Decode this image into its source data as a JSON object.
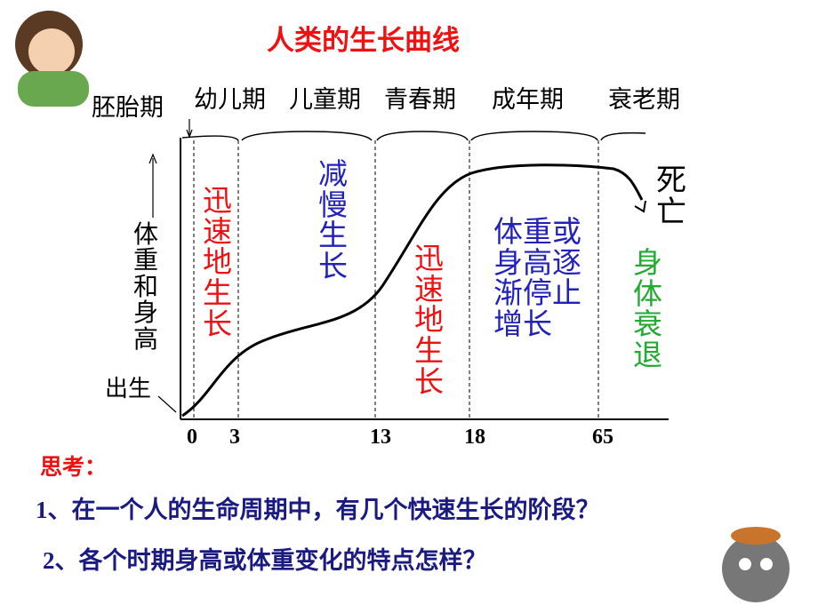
{
  "title": "人类的生长曲线",
  "stages": [
    "胚胎期",
    "幼儿期",
    "儿童期",
    "青春期",
    "成年期",
    "衰老期"
  ],
  "y_label": "体重和身高",
  "birth_label": "出生",
  "end_label": "死亡",
  "x_labels": [
    "0",
    "3",
    "13",
    "18",
    "65"
  ],
  "phase_notes": [
    {
      "text": "迅速地生长",
      "color": "#ee1111"
    },
    {
      "text": "减慢生长",
      "color": "#2222bb"
    },
    {
      "text": "迅速地生长",
      "color": "#ee1111"
    },
    {
      "text": "体重或身高逐渐停止增长",
      "color": "#2222bb"
    },
    {
      "text": "身体衰退",
      "color": "#22aa33"
    }
  ],
  "questions": {
    "heading": "思考：",
    "items": [
      "1、在一个人的生命周期中，有几个快速生长的阶段？",
      "2、各个时期身高或体重变化的特点怎样？"
    ]
  }
}
